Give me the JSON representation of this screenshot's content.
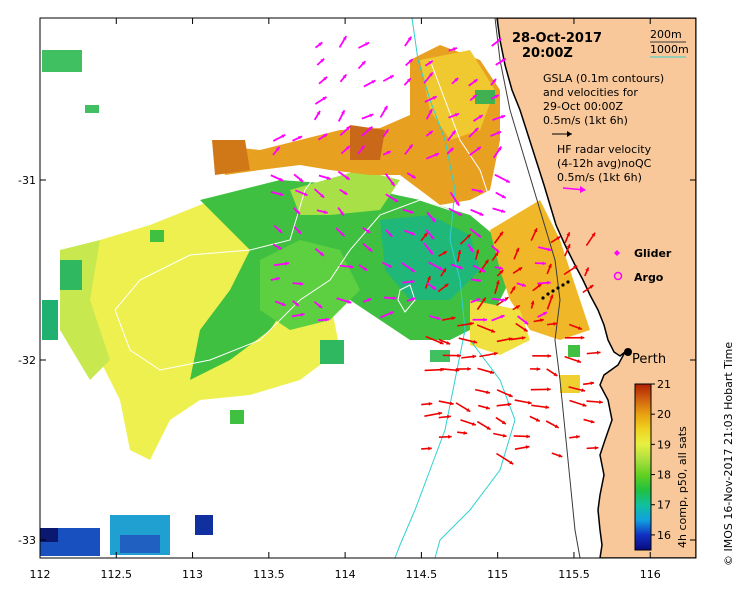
{
  "header": {
    "date": "28-Oct-2017",
    "time": "20:00Z"
  },
  "contour_legend": {
    "shallow": "200m",
    "deep": "1000m",
    "shallow_color": "#3a3a3a",
    "deep_color": "#30d0d0"
  },
  "info": {
    "gsla_line1": "GSLA (0.1m contours)",
    "gsla_line2": "and velocities for",
    "gsla_line3": "29-Oct 00:00Z",
    "gsla_scale": "0.5m/s (1kt 6h)",
    "hf_line1": "HF radar velocity",
    "hf_line2": "(4-12h avg)noQC",
    "hf_scale": "0.5m/s (1kt 6h)"
  },
  "legend": {
    "glider": "Glider",
    "argo": "Argo",
    "glider_color": "#ff00ff",
    "argo_color": "#ff00ff"
  },
  "place": {
    "perth": "Perth"
  },
  "axes": {
    "x_ticks": [
      "112",
      "112.5",
      "113",
      "113.5",
      "114",
      "114.5",
      "115",
      "115.5",
      "116"
    ],
    "x_values": [
      112,
      112.5,
      113,
      113.5,
      114,
      114.5,
      115,
      115.5,
      116
    ],
    "y_ticks": [
      "-31",
      "-32",
      "-33"
    ],
    "y_values": [
      -31,
      -32,
      -33
    ],
    "lon_range": [
      112,
      116.3
    ],
    "lat_range": [
      -30.1,
      -33.1
    ]
  },
  "colorbar": {
    "label": "4h comp, p50, all sats",
    "ticks": [
      "16",
      "17",
      "18",
      "19",
      "20",
      "21"
    ],
    "values": [
      16,
      17,
      18,
      19,
      20,
      21
    ],
    "range": [
      15.5,
      21
    ]
  },
  "credit": "©  IMOS 16-Nov-2017 21:03 Hobart Time",
  "colors": {
    "land": "#f8c89a",
    "gsla_arrow": "#ff00ff",
    "hf_arrow": "#ee0000",
    "contour_sla": "#ffffff"
  }
}
